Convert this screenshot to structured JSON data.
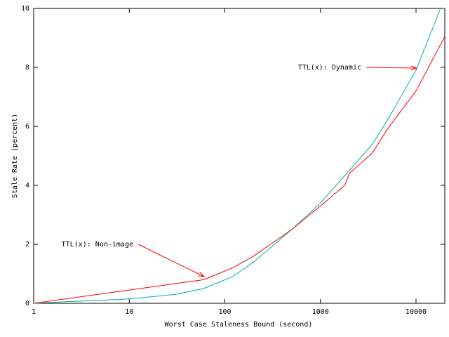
{
  "chart_data": {
    "type": "line",
    "xscale": "log",
    "xlabel": "Worst Case Staleness Bound (second)",
    "ylabel": "Stale Rate (percent)",
    "xlim": [
      1,
      20000
    ],
    "ylim": [
      0,
      10
    ],
    "xticks": [
      1,
      10,
      100,
      1000,
      10000
    ],
    "yticks": [
      0,
      2,
      4,
      6,
      8,
      10
    ],
    "series": [
      {
        "name": "TTL(x): Dynamic",
        "color": "#00b0a0",
        "x": [
          1,
          10,
          30,
          60,
          120,
          200,
          500,
          1000,
          2000,
          3500,
          5000,
          10000,
          18000
        ],
        "values": [
          0,
          0.15,
          0.3,
          0.5,
          0.9,
          1.4,
          2.5,
          3.4,
          4.5,
          5.4,
          6.2,
          7.9,
          10
        ]
      },
      {
        "name": "TTL(x): Non-image",
        "color": "#ff0000",
        "x": [
          1,
          10,
          60,
          120,
          200,
          500,
          1000,
          1800,
          2000,
          3500,
          5000,
          10000,
          20000
        ],
        "values": [
          0,
          0.45,
          0.8,
          1.2,
          1.6,
          2.5,
          3.3,
          4.0,
          4.4,
          5.1,
          5.9,
          7.2,
          9.05
        ]
      }
    ]
  }
}
